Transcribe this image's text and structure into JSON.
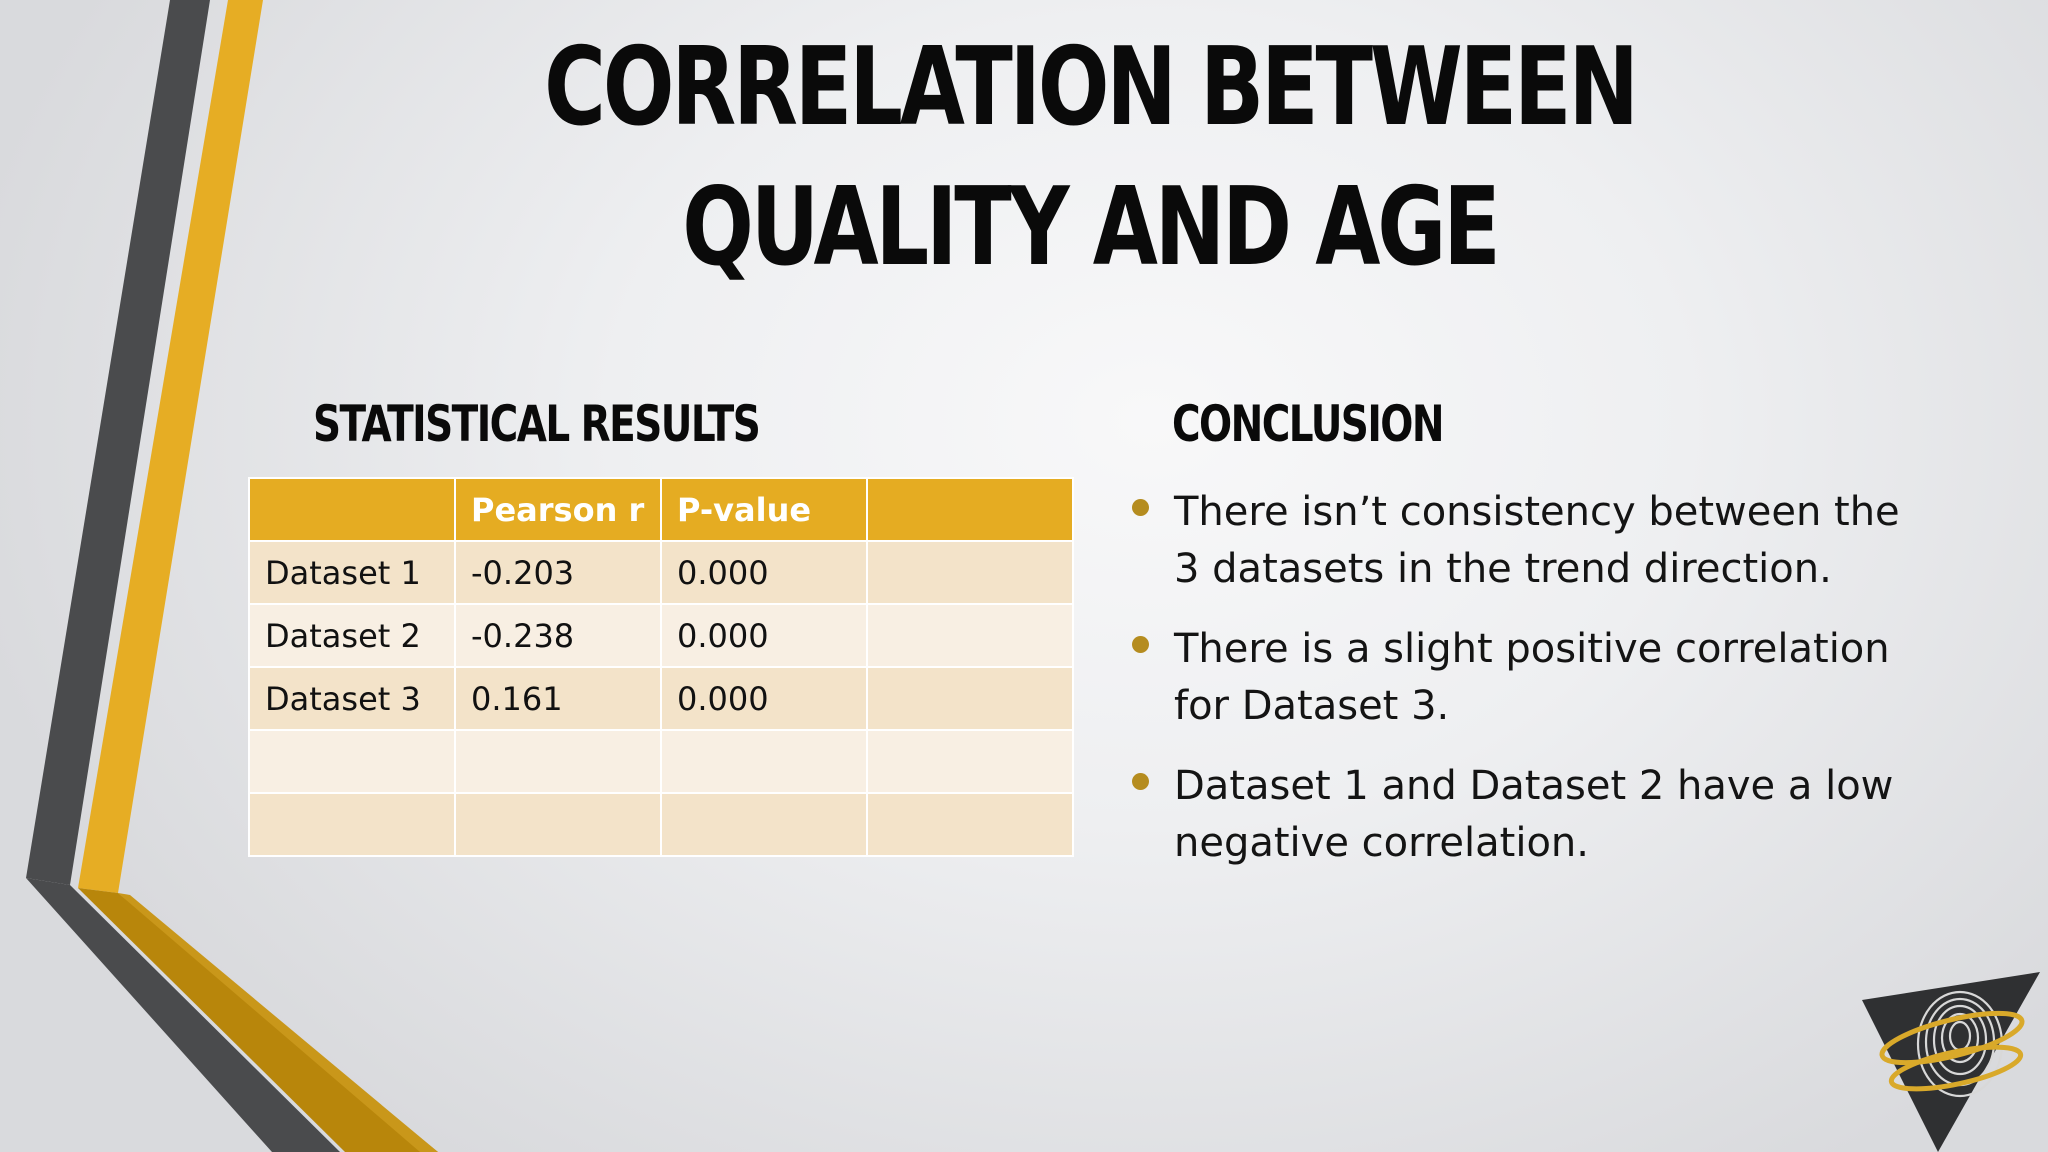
{
  "slide": {
    "title": "CORRELATION BETWEEN QUALITY AND AGE"
  },
  "statistics": {
    "heading": "STATISTICAL RESULTS",
    "columns": [
      "",
      "Pearson r",
      "P-value",
      ""
    ],
    "rows": [
      [
        "Dataset 1",
        "-0.203",
        "0.000",
        ""
      ],
      [
        "Dataset 2",
        "-0.238",
        "0.000",
        ""
      ],
      [
        "Dataset 3",
        "0.161",
        "0.000",
        ""
      ],
      [
        "",
        "",
        "",
        ""
      ],
      [
        "",
        "",
        "",
        ""
      ]
    ]
  },
  "conclusion": {
    "heading": "CONCLUSION",
    "bullets": [
      "There isn’t consistency between the 3 datasets in the trend direction.",
      "There is a slight positive correlation for Dataset 3.",
      "Dataset 1 and Dataset 2 have a low negative correlation."
    ]
  },
  "colors": {
    "accent_gold": "#e5ac22",
    "dark_gold": "#b8860b",
    "dark_gray": "#4a4b4d",
    "row_odd": "#f3e3c9",
    "row_even": "#f8efe3"
  },
  "icons": {
    "logo": "fingerprint-triangle-logo-icon"
  }
}
